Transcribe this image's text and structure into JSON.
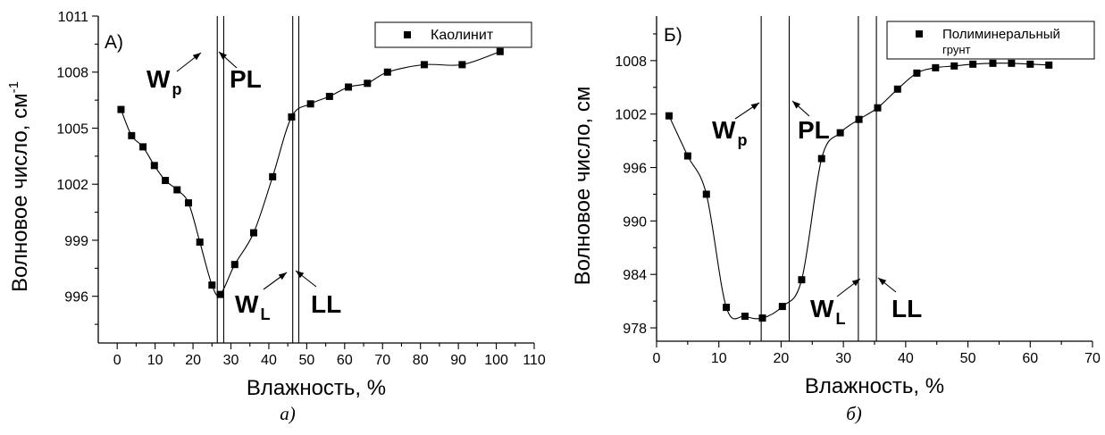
{
  "chart_data": [
    {
      "type": "line",
      "panel_label": "А)",
      "caption": "а)",
      "xlabel": "Влажность, %",
      "ylabel": "Волновое число, см",
      "ylabel_sup": "-1",
      "xlim": [
        -5,
        110
      ],
      "ylim": [
        993.5,
        1011
      ],
      "xticks": [
        0,
        10,
        20,
        30,
        40,
        50,
        60,
        70,
        80,
        90,
        100,
        110
      ],
      "yticks": [
        996,
        999,
        1002,
        1005,
        1008,
        1011
      ],
      "legend": {
        "position": "top-right",
        "label": "Каолинит"
      },
      "series": [
        {
          "name": "Каолинит",
          "x": [
            1,
            3.8,
            6.8,
            9.8,
            12.7,
            15.8,
            18.8,
            21.8,
            25,
            27.2,
            31,
            36,
            41,
            46,
            51,
            56,
            61,
            66,
            71.3,
            81,
            91,
            101
          ],
          "y": [
            1006,
            1004.6,
            1004,
            1003,
            1002.2,
            1001.7,
            1001,
            998.9,
            996.6,
            996.1,
            997.7,
            999.4,
            1002.4,
            1005.6,
            1006.3,
            1006.7,
            1007.2,
            1007.4,
            1008,
            1008.4,
            1008.4,
            1009.1
          ]
        }
      ],
      "vertical_lines_x": [
        26.4,
        28.1,
        46.3,
        47.9
      ],
      "annotations": [
        {
          "text": "W",
          "sub": "p"
        },
        {
          "text": "PL",
          "sub": ""
        },
        {
          "text": "W",
          "sub": "L"
        },
        {
          "text": "LL",
          "sub": ""
        }
      ]
    },
    {
      "type": "line",
      "panel_label": "Б)",
      "caption": "б)",
      "xlabel": "Влажность, %",
      "ylabel": "Волновое число, см",
      "ylabel_sup": "",
      "xlim": [
        0,
        70
      ],
      "ylim": [
        976.5,
        1013
      ],
      "xticks": [
        0,
        10,
        20,
        30,
        40,
        50,
        60,
        70
      ],
      "yticks": [
        978,
        984,
        990,
        996,
        1002,
        1008
      ],
      "legend": {
        "position": "top-right",
        "label": "Полиминеральный грунт",
        "label_lines": [
          "Полиминеральный",
          "грунт"
        ]
      },
      "series": [
        {
          "name": "Полиминеральный грунт",
          "x": [
            2,
            5,
            8,
            11.2,
            14.2,
            17,
            20.2,
            23.3,
            26.5,
            29.5,
            32.5,
            35.5,
            38.7,
            41.8,
            44.8,
            47.8,
            50.8,
            54,
            57,
            60,
            63
          ],
          "y": [
            1001.8,
            997.3,
            993,
            980.3,
            979.3,
            979.1,
            980.4,
            983.4,
            997,
            999.9,
            1001.4,
            1002.7,
            1004.8,
            1006.6,
            1007.2,
            1007.4,
            1007.6,
            1007.7,
            1007.7,
            1007.6,
            1007.5
          ]
        }
      ],
      "vertical_lines_x": [
        16.8,
        21.3,
        32.4,
        35.3
      ],
      "annotations": [
        {
          "text": "W",
          "sub": "p"
        },
        {
          "text": "PL",
          "sub": ""
        },
        {
          "text": "W",
          "sub": "L"
        },
        {
          "text": "LL",
          "sub": ""
        }
      ]
    }
  ]
}
